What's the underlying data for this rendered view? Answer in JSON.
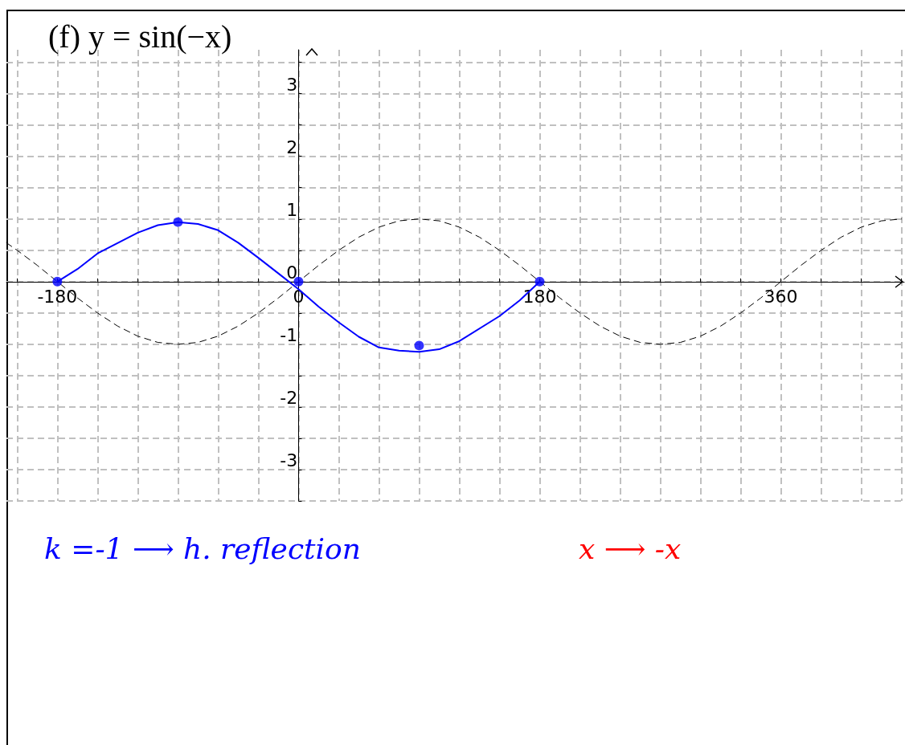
{
  "chart_data": {
    "type": "line",
    "title": "(f) y = sin(−x)",
    "annotations": [
      "k =-1 ⟶ h. reflection",
      "x ⟶ -x"
    ],
    "xlim": [
      -218,
      452
    ],
    "ylim": [
      -3.5,
      3.7
    ],
    "xticks": [
      {
        "value": -210,
        "label": null
      },
      -180,
      {
        "value": -150,
        "label": null
      },
      {
        "value": -120,
        "label": null
      },
      {
        "value": -90,
        "label": null
      },
      {
        "value": -60,
        "label": null
      },
      {
        "value": -30,
        "label": null
      },
      0,
      {
        "value": 30,
        "label": null
      },
      {
        "value": 60,
        "label": null
      },
      {
        "value": 90,
        "label": null
      },
      {
        "value": 120,
        "label": null
      },
      {
        "value": 150,
        "label": null
      },
      180,
      {
        "value": 210,
        "label": null
      },
      {
        "value": 240,
        "label": null
      },
      {
        "value": 270,
        "label": null
      },
      {
        "value": 300,
        "label": null
      },
      {
        "value": 330,
        "label": null
      },
      360,
      {
        "value": 390,
        "label": null
      },
      {
        "value": 420,
        "label": null
      },
      {
        "value": 450,
        "label": null
      }
    ],
    "yticks": [
      {
        "value": -3.5,
        "label": null
      },
      -3,
      {
        "value": -2.5,
        "label": null
      },
      -2,
      {
        "value": -1.5,
        "label": null
      },
      -1,
      {
        "value": -0.5,
        "label": null
      },
      0,
      {
        "value": 0.5,
        "label": null
      },
      1,
      {
        "value": 1.5,
        "label": null
      },
      2,
      {
        "value": 2.5,
        "label": null
      },
      3,
      {
        "value": 3.5,
        "label": null
      }
    ],
    "grid": true,
    "series": [
      {
        "type": "line",
        "line_style": "dashed",
        "marker": "none",
        "color": "#000000",
        "x": [
          -218,
          -210,
          -195,
          -180,
          -165,
          -150,
          -135,
          -120,
          -105,
          -90,
          -75,
          -60,
          -45,
          -30,
          -15,
          0,
          15,
          30,
          45,
          60,
          75,
          90,
          105,
          120,
          135,
          150,
          165,
          180,
          195,
          210,
          225,
          240,
          255,
          270,
          285,
          300,
          315,
          330,
          345,
          360,
          375,
          390,
          405,
          420,
          435,
          450
        ],
        "values": [
          0.62,
          0.5,
          0.26,
          0,
          -0.26,
          -0.5,
          -0.71,
          -0.87,
          -0.97,
          -1,
          -0.97,
          -0.87,
          -0.71,
          -0.5,
          -0.26,
          0,
          0.26,
          0.5,
          0.71,
          0.87,
          0.97,
          1,
          0.97,
          0.87,
          0.71,
          0.5,
          0.26,
          0,
          -0.26,
          -0.5,
          -0.71,
          -0.87,
          -0.97,
          -1,
          -0.97,
          -0.87,
          -0.71,
          -0.5,
          -0.26,
          0,
          0.26,
          0.5,
          0.71,
          0.87,
          0.97,
          1
        ]
      },
      {
        "type": "line",
        "line_style": "solid",
        "marker": "none",
        "color": "#0000ff",
        "x": [
          -180,
          -165,
          -150,
          -120,
          -105,
          -90,
          -75,
          -60,
          -45,
          -30,
          -15,
          0,
          15,
          30,
          45,
          60,
          75,
          90,
          105,
          120,
          150,
          165,
          180
        ],
        "values": [
          0,
          0.2,
          0.45,
          0.78,
          0.9,
          0.95,
          0.92,
          0.82,
          0.62,
          0.38,
          0.13,
          -0.12,
          -0.4,
          -0.65,
          -0.88,
          -1.05,
          -1.1,
          -1.12,
          -1.08,
          -0.95,
          -0.55,
          -0.3,
          0
        ]
      },
      {
        "type": "scatter",
        "marker": "circle",
        "color": "#0000ff",
        "x": [
          -180,
          -90,
          0,
          90,
          180
        ],
        "values": [
          0,
          0.95,
          0,
          -1.02,
          0
        ]
      }
    ]
  }
}
